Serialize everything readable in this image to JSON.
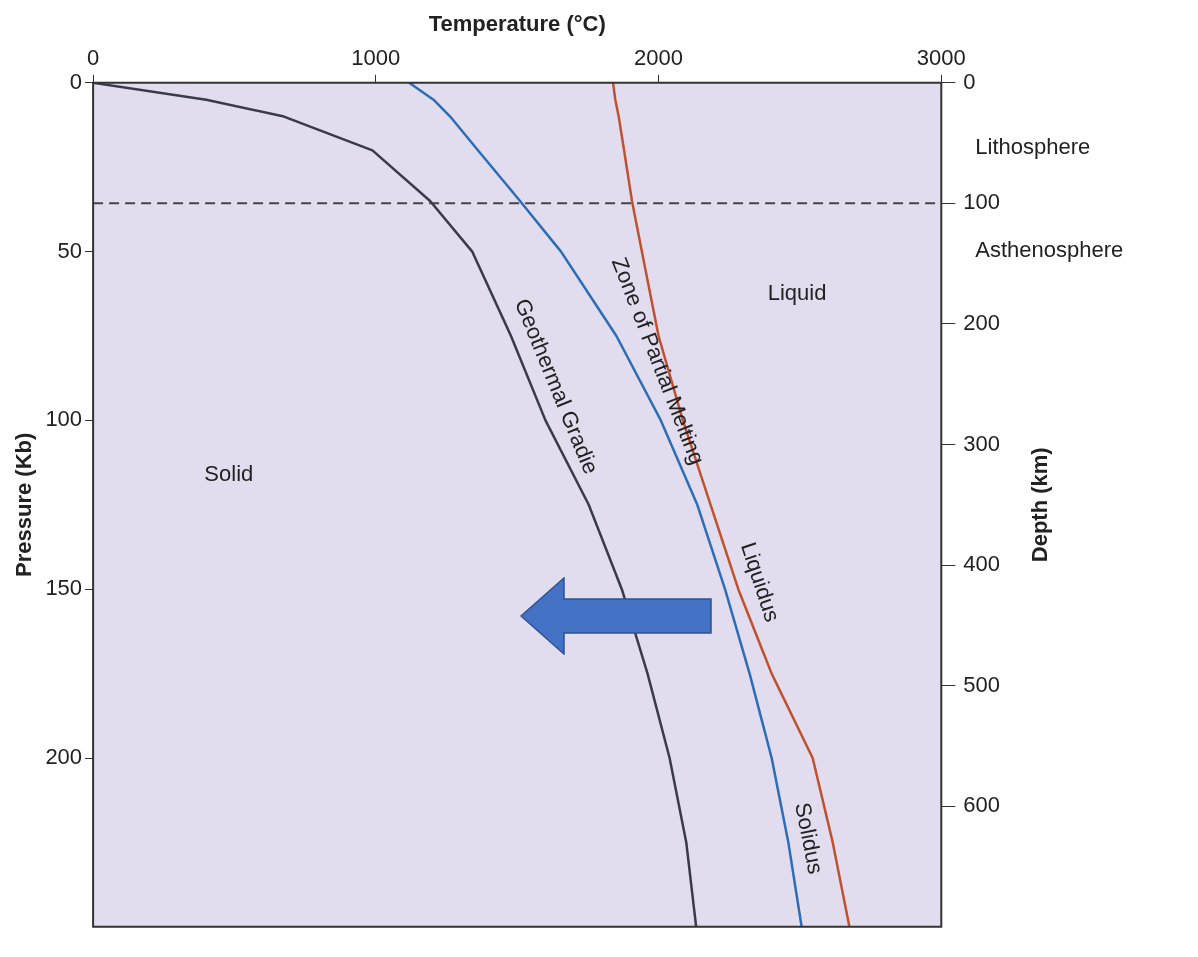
{
  "chart_data": {
    "type": "line",
    "xlabel": "Temperature (°C)",
    "ylabel": "Pressure (Kb)",
    "y2label": "Depth (km)",
    "xlim": [
      0,
      3000
    ],
    "xticks": [
      0,
      1000,
      2000,
      3000
    ],
    "ylim": [
      250,
      0
    ],
    "yticks": [
      0,
      50,
      100,
      150,
      200
    ],
    "y2lim": [
      700,
      0
    ],
    "y2ticks": [
      0,
      100,
      200,
      300,
      400,
      500,
      600
    ],
    "grid": false,
    "legend": false,
    "marker": "none",
    "series": [
      {
        "name": "Geothermal Gradie",
        "color": "#3a3a48",
        "x": [
          0,
          400,
          675,
          988,
          1192,
          1341,
          1478,
          1600,
          1753,
          1870,
          1961,
          2039,
          2098,
          2133
        ],
        "values": [
          0,
          5,
          10,
          20,
          35,
          50,
          75,
          100,
          125,
          150,
          175,
          200,
          225,
          250
        ]
      },
      {
        "name": "Solidus",
        "color": "#2d6db5",
        "x": [
          1118,
          1204,
          1263,
          1361,
          1510,
          1655,
          1851,
          2008,
          2137,
          2235,
          2322,
          2400,
          2459,
          2506
        ],
        "values": [
          0,
          5,
          10,
          20,
          35,
          50,
          75,
          100,
          125,
          150,
          175,
          200,
          225,
          250
        ]
      },
      {
        "name": "Liquidus",
        "color": "#c0512f",
        "x": [
          1839,
          1847,
          1859,
          1878,
          1906,
          1941,
          2000,
          2086,
          2184,
          2282,
          2400,
          2545,
          2616,
          2675
        ],
        "values": [
          0,
          5,
          10,
          20,
          35,
          50,
          75,
          100,
          125,
          150,
          175,
          200,
          225,
          250
        ]
      }
    ],
    "ref_lines": [
      {
        "axis": "y2",
        "value": 100,
        "color": "#444444",
        "line_style": "dashed"
      }
    ],
    "annotations": [
      "Solid",
      "Liquid",
      "Zone of Partial Melting",
      "Lithosphere",
      "Asthenosphere"
    ]
  }
}
